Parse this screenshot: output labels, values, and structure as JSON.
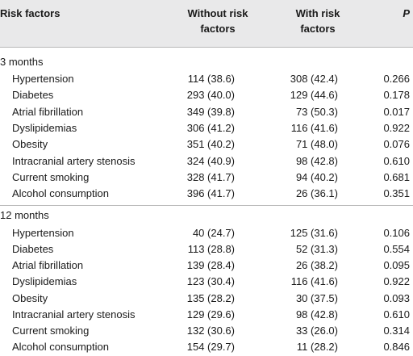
{
  "header": {
    "risk_factors": "Risk factors",
    "without_line1": "Without risk",
    "without_line2": "factors",
    "with_line1": "With risk",
    "with_line2": "factors",
    "p": "P"
  },
  "sections": [
    {
      "label": "3 months",
      "rows": [
        {
          "name": "Hypertension",
          "without": "114 (38.6)",
          "with": "308 (42.4)",
          "p": "0.266"
        },
        {
          "name": "Diabetes",
          "without": "293 (40.0)",
          "with": "129 (44.6)",
          "p": "0.178"
        },
        {
          "name": "Atrial fibrillation",
          "without": "349 (39.8)",
          "with": "73 (50.3)",
          "p": "0.017"
        },
        {
          "name": "Dyslipidemias",
          "without": "306 (41.2)",
          "with": "116 (41.6)",
          "p": "0.922"
        },
        {
          "name": "Obesity",
          "without": "351 (40.2)",
          "with": "71 (48.0)",
          "p": "0.076"
        },
        {
          "name": "Intracranial artery stenosis",
          "without": "324 (40.9)",
          "with": "98 (42.8)",
          "p": "0.610"
        },
        {
          "name": "Current smoking",
          "without": "328 (41.7)",
          "with": "94 (40.2)",
          "p": "0.681"
        },
        {
          "name": "Alcohol consumption",
          "without": "396 (41.7)",
          "with": "26 (36.1)",
          "p": "0.351"
        }
      ]
    },
    {
      "label": "12 months",
      "rows": [
        {
          "name": "Hypertension",
          "without": "40 (24.7)",
          "with": "125 (31.6)",
          "p": "0.106"
        },
        {
          "name": "Diabetes",
          "without": "113 (28.8)",
          "with": "52 (31.3)",
          "p": "0.554"
        },
        {
          "name": "Atrial fibrillation",
          "without": "139 (28.4)",
          "with": "26 (38.2)",
          "p": "0.095"
        },
        {
          "name": "Dyslipidemias",
          "without": "123 (30.4)",
          "with": "116 (41.6)",
          "p": "0.922"
        },
        {
          "name": "Obesity",
          "without": "135 (28.2)",
          "with": "30 (37.5)",
          "p": "0.093"
        },
        {
          "name": "Intracranial artery stenosis",
          "without": "129 (29.6)",
          "with": "98 (42.8)",
          "p": "0.610"
        },
        {
          "name": "Current smoking",
          "without": "132 (30.6)",
          "with": "33 (26.0)",
          "p": "0.314"
        },
        {
          "name": "Alcohol consumption",
          "without": "154 (29.7)",
          "with": "11 (28.2)",
          "p": "0.846"
        }
      ]
    }
  ]
}
